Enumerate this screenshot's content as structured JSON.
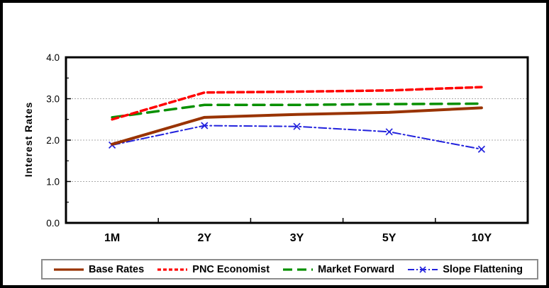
{
  "chart_data": {
    "type": "line",
    "title": "",
    "xlabel": "",
    "ylabel": "Interest Rates",
    "ylim": [
      0.0,
      4.0
    ],
    "ytick_labels": [
      "0.0",
      "1.0",
      "2.0",
      "3.0",
      "4.0"
    ],
    "ytick_values": [
      0,
      1,
      2,
      3,
      4
    ],
    "minor_ytick_step": 0.5,
    "grid": "horizontal dotted gridlines at 1.0 intervals",
    "legend_position": "bottom",
    "categories": [
      "1M",
      "2Y",
      "3Y",
      "5Y",
      "10Y"
    ],
    "series": [
      {
        "name": "Base Rates",
        "values": [
          1.9,
          2.55,
          2.62,
          2.67,
          2.78
        ],
        "color": "#993300",
        "style": "solid",
        "marker": "none",
        "width": 4
      },
      {
        "name": "PNC Economist",
        "values": [
          2.5,
          3.15,
          3.17,
          3.2,
          3.28
        ],
        "color": "#FF0000",
        "style": "dashed",
        "marker": "none",
        "width": 3.5
      },
      {
        "name": "Market Forward",
        "values": [
          2.55,
          2.85,
          2.85,
          2.87,
          2.88
        ],
        "color": "#089000",
        "style": "long-dash",
        "marker": "none",
        "width": 3.5
      },
      {
        "name": "Slope Flattening",
        "values": [
          1.88,
          2.35,
          2.33,
          2.2,
          1.78
        ],
        "color": "#2222DD",
        "style": "dash-dot",
        "marker": "x",
        "width": 2
      }
    ],
    "colors": {
      "axis_frame": "#000000",
      "gridline": "#aaaaaa",
      "background": "#ffffff",
      "legend_border": "#8c8c8c"
    }
  }
}
